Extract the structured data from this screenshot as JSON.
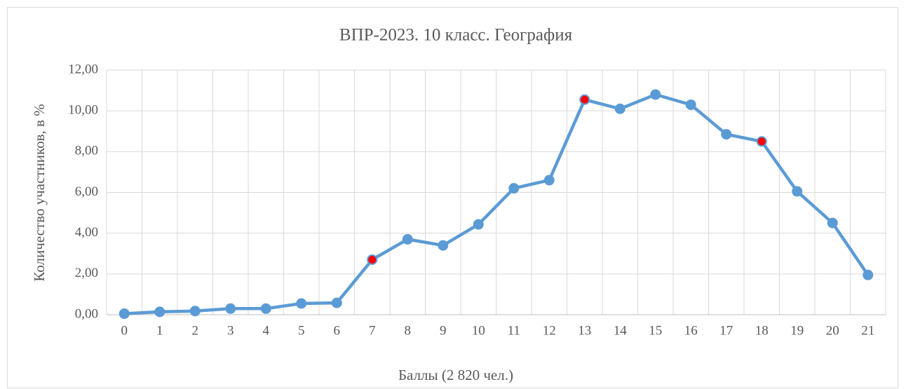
{
  "chart_data": {
    "type": "line",
    "title": "ВПР-2023. 10 класс. География",
    "x_label": "Баллы (2 820 чел.)",
    "y_label": "Количество участников, в %",
    "categories": [
      "0",
      "1",
      "2",
      "3",
      "4",
      "5",
      "6",
      "7",
      "8",
      "9",
      "10",
      "11",
      "12",
      "13",
      "14",
      "15",
      "16",
      "17",
      "18",
      "19",
      "20",
      "21"
    ],
    "series": [
      {
        "name": "Количество участников, в %",
        "color": "#5b9bd5",
        "values": [
          0.05,
          0.14,
          0.18,
          0.3,
          0.3,
          0.55,
          0.58,
          2.7,
          3.7,
          3.4,
          4.43,
          6.2,
          6.6,
          10.55,
          10.1,
          10.8,
          10.3,
          8.85,
          8.5,
          6.05,
          4.5,
          1.95
        ],
        "point_colors": [
          "#5b9bd5",
          "#5b9bd5",
          "#5b9bd5",
          "#5b9bd5",
          "#5b9bd5",
          "#5b9bd5",
          "#5b9bd5",
          "#ff0000",
          "#5b9bd5",
          "#5b9bd5",
          "#5b9bd5",
          "#5b9bd5",
          "#5b9bd5",
          "#ff0000",
          "#5b9bd5",
          "#5b9bd5",
          "#5b9bd5",
          "#5b9bd5",
          "#ff0000",
          "#5b9bd5",
          "#5b9bd5",
          "#5b9bd5"
        ]
      }
    ],
    "ylim": [
      0,
      12
    ],
    "yticks": [
      {
        "value": 0,
        "label": "0,00"
      },
      {
        "value": 2,
        "label": "2,00"
      },
      {
        "value": 4,
        "label": "4,00"
      },
      {
        "value": 6,
        "label": "6,00"
      },
      {
        "value": 8,
        "label": "8,00"
      },
      {
        "value": 10,
        "label": "10,00"
      },
      {
        "value": 12,
        "label": "12,00"
      }
    ],
    "grid": true
  }
}
